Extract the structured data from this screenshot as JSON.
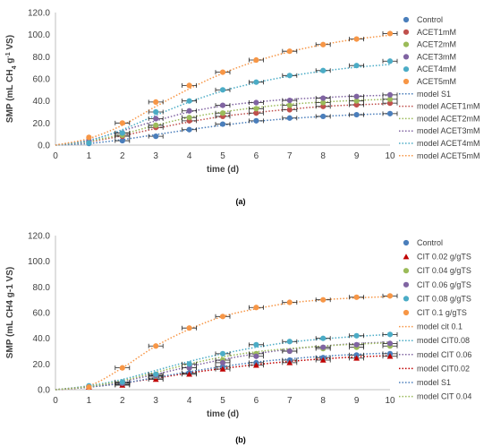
{
  "chart_data": [
    {
      "type": "scatter",
      "panel_label": "(a)",
      "xlabel": "time (d)",
      "ylabel": "SMP (mL CH4 g-1 VS)",
      "ylabel_parts": [
        "SMP (mL CH",
        "4",
        " g",
        "-1",
        " VS)"
      ],
      "xlim": [
        0,
        10
      ],
      "ylim": [
        0,
        120
      ],
      "x_ticks": [
        0,
        1,
        2,
        3,
        4,
        5,
        6,
        7,
        8,
        9,
        10
      ],
      "y_ticks": [
        "0.0",
        "20.0",
        "40.0",
        "60.0",
        "80.0",
        "100.0",
        "120.0"
      ],
      "x": [
        1,
        2,
        3,
        4,
        5,
        6,
        7,
        8,
        9,
        10
      ],
      "legend_position": "right",
      "series": [
        {
          "name": "Control",
          "marker": "circle",
          "color": "#4a7ebb",
          "values": [
            1.5,
            4,
            8,
            14,
            19,
            22,
            24.5,
            26,
            27.5,
            28.5
          ]
        },
        {
          "name": "ACET1mM",
          "marker": "circle",
          "color": "#c0504d",
          "values": [
            3,
            8,
            16,
            22,
            26,
            29,
            32,
            35,
            36.5,
            38
          ]
        },
        {
          "name": "ACET2mM",
          "marker": "circle",
          "color": "#9bbb59",
          "values": [
            3,
            9,
            18,
            25,
            29,
            33,
            36,
            38.5,
            40,
            41.5
          ]
        },
        {
          "name": "ACET3mM",
          "marker": "circle",
          "color": "#8064a2",
          "values": [
            4,
            11,
            24,
            31,
            36,
            38.5,
            40.5,
            42.5,
            44,
            45.5
          ]
        },
        {
          "name": "ACET4mM",
          "marker": "circle",
          "color": "#4bacc6",
          "values": [
            2,
            11,
            30,
            40,
            50,
            57,
            63,
            67.5,
            72,
            76
          ]
        },
        {
          "name": "ACET5mM",
          "marker": "circle",
          "color": "#f79646",
          "values": [
            7,
            20,
            39,
            54,
            66,
            77,
            85,
            91,
            96,
            101
          ]
        }
      ],
      "models": [
        {
          "name": "model S1",
          "color": "#4a7ebb",
          "values": [
            1.5,
            5,
            9.5,
            14,
            18,
            21.5,
            24,
            26,
            27.5,
            28.5
          ]
        },
        {
          "name": "model ACET1mM",
          "color": "#c0504d",
          "values": [
            3,
            8.5,
            15,
            21,
            26,
            29.5,
            32.5,
            35,
            36.5,
            37.5
          ]
        },
        {
          "name": "model ACET2mM",
          "color": "#9bbb59",
          "values": [
            3.5,
            10,
            18,
            25,
            30,
            34,
            37,
            39,
            40.5,
            41.5
          ]
        },
        {
          "name": "model ACET3mM",
          "color": "#8064a2",
          "values": [
            4.5,
            13,
            22,
            30,
            35.5,
            39,
            41.5,
            43,
            44.5,
            45
          ]
        },
        {
          "name": "model ACET4mM",
          "color": "#4bacc6",
          "values": [
            4,
            14,
            27,
            39,
            49,
            56.5,
            62.5,
            67,
            70.5,
            73
          ]
        },
        {
          "name": "model ACET5mM",
          "color": "#f79646",
          "values": [
            6,
            18,
            35,
            51,
            65,
            76,
            84.5,
            91,
            96,
            99.5
          ]
        }
      ]
    },
    {
      "type": "scatter",
      "panel_label": "(b)",
      "xlabel": "time (d)",
      "ylabel": "SMP (mL CH4 g-1 VS)",
      "ylabel_parts": [
        "SMP (mL CH4 g-1 VS)"
      ],
      "xlim": [
        0,
        10
      ],
      "ylim": [
        0,
        120
      ],
      "x_ticks": [
        0,
        1,
        2,
        3,
        4,
        5,
        6,
        7,
        8,
        9,
        10
      ],
      "y_ticks": [
        "0.0",
        "20.0",
        "40.0",
        "60.0",
        "80.0",
        "100.0",
        "120.0"
      ],
      "x": [
        1,
        2,
        3,
        4,
        5,
        6,
        7,
        8,
        9,
        10
      ],
      "legend_position": "right",
      "series": [
        {
          "name": "Control",
          "marker": "circle",
          "color": "#4a7ebb",
          "values": [
            2,
            4,
            9,
            13,
            18,
            21,
            23,
            25,
            27,
            28
          ]
        },
        {
          "name": "CIT 0.02 g/gTS",
          "marker": "triangle",
          "color": "#c00000",
          "values": [
            2,
            3.5,
            8,
            12,
            16,
            19,
            21,
            23,
            24.5,
            26
          ]
        },
        {
          "name": "CIT 0.04 g/gTS",
          "marker": "circle",
          "color": "#9bbb59",
          "values": [
            2.5,
            5,
            10.5,
            17,
            23,
            28,
            30,
            32,
            33,
            34
          ]
        },
        {
          "name": "CIT 0.06 g/gTS",
          "marker": "circle",
          "color": "#8064a2",
          "values": [
            2.5,
            5,
            11,
            17,
            21,
            26,
            30,
            33,
            35,
            36
          ]
        },
        {
          "name": "CIT 0.08 g/gTS",
          "marker": "circle",
          "color": "#4bacc6",
          "values": [
            3,
            6,
            12,
            20,
            28,
            35,
            37.5,
            40,
            42,
            43
          ]
        },
        {
          "name": "CIT 0.1 g/gTS",
          "marker": "circle",
          "color": "#f79646",
          "values": [
            2,
            17,
            34,
            48,
            57,
            64,
            68,
            70,
            72,
            73
          ]
        }
      ],
      "models": [
        {
          "name": "model cit 0.1",
          "color": "#f79646",
          "values": [
            3,
            17,
            34,
            47,
            57,
            63,
            67.5,
            70,
            71.5,
            72.5
          ]
        },
        {
          "name": "model CIT0.08",
          "color": "#4bacc6",
          "values": [
            3,
            8,
            15,
            22,
            28,
            33,
            37,
            39.5,
            41.5,
            43
          ]
        },
        {
          "name": "model CIT 0.06",
          "color": "#8064a2",
          "values": [
            2.5,
            6.5,
            12,
            18,
            23.5,
            28,
            31.5,
            34,
            36,
            37
          ]
        },
        {
          "name": "model CIT0.02",
          "color": "#c00000",
          "values": [
            2,
            5,
            9,
            13,
            16.5,
            19.5,
            22,
            24,
            25.5,
            26.5
          ]
        },
        {
          "name": "model S1",
          "color": "#4a7ebb",
          "values": [
            2,
            5,
            9.5,
            14,
            18,
            21.5,
            24,
            26,
            27.5,
            28.5
          ]
        },
        {
          "name": "model CIT 0.04",
          "color": "#9bbb59",
          "values": [
            2.5,
            7,
            13.5,
            20,
            25.5,
            29.5,
            32,
            34,
            35.5,
            36.5
          ]
        }
      ]
    }
  ]
}
